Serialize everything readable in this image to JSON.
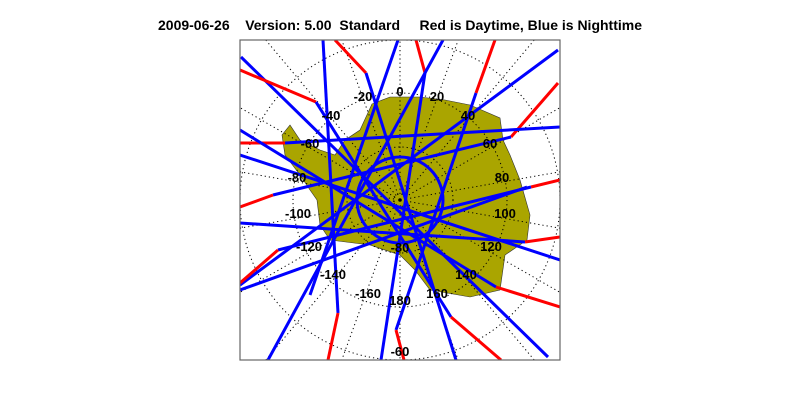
{
  "title": {
    "date": "2009-06-26",
    "version": "Version: 5.00",
    "mode": "Standard",
    "legend_text": "Red is Daytime, Blue is Nighttime"
  },
  "map": {
    "projection": "south-polar-stereographic",
    "land_color": "#aaa500",
    "day_color": "#ff0000",
    "night_color": "#0000ff",
    "longitude_labels": [
      "0",
      "20",
      "40",
      "60",
      "80",
      "100",
      "120",
      "140",
      "160",
      "180",
      "-160",
      "-140",
      "-120",
      "-100",
      "-80",
      "-60",
      "-40",
      "-20"
    ],
    "latitude_labels": [
      "-60",
      "-80"
    ]
  }
}
